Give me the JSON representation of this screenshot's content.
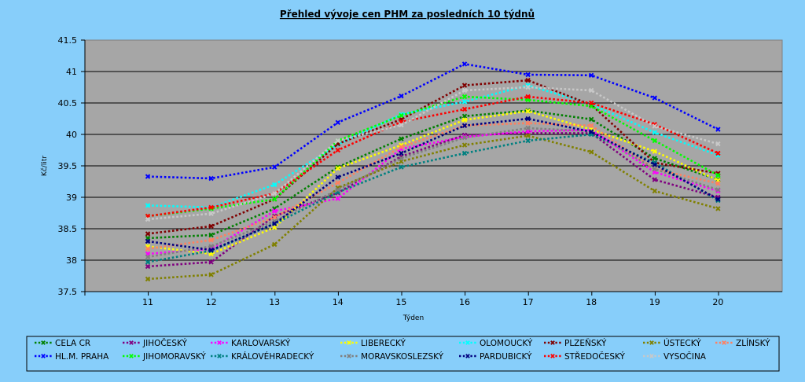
{
  "chart_data": {
    "type": "line",
    "title": "Přehled vývoje cen PHM za posledních 10 týdnů",
    "xlabel": "Týden",
    "ylabel": "Kč/litr",
    "x": [
      11,
      12,
      13,
      14,
      15,
      16,
      17,
      18,
      19,
      20
    ],
    "ylim": [
      37.5,
      41.5
    ],
    "yticks": [
      37.5,
      38,
      38.5,
      39,
      39.5,
      40,
      40.5,
      41,
      41.5
    ],
    "ytick_labels": [
      "37.5",
      "38",
      "38.5",
      "39",
      "39.5",
      "40",
      "40.5",
      "41",
      "41.5"
    ],
    "grid": true,
    "legend_position": "bottom",
    "series": [
      {
        "name": "CELA CR",
        "color": "#008000",
        "values": [
          38.35,
          38.4,
          38.82,
          39.48,
          39.93,
          40.29,
          40.38,
          40.24,
          39.62,
          39.28
        ]
      },
      {
        "name": "JIHOČESKÝ",
        "color": "#800080",
        "values": [
          37.9,
          37.97,
          38.7,
          39.07,
          39.65,
          39.99,
          40.02,
          40.02,
          39.28,
          39.0
        ]
      },
      {
        "name": "KARLOVARSKÝ",
        "color": "#ff00ff",
        "values": [
          38.1,
          38.18,
          38.78,
          38.98,
          39.77,
          39.96,
          40.05,
          40.07,
          39.4,
          39.1
        ]
      },
      {
        "name": "LIBERECKÝ",
        "color": "#ffff00",
        "values": [
          38.22,
          38.1,
          38.52,
          39.46,
          39.83,
          40.23,
          40.37,
          40.08,
          39.73,
          39.27
        ]
      },
      {
        "name": "OLOMOUCKÝ",
        "color": "#00ffff",
        "values": [
          38.87,
          38.84,
          39.2,
          39.84,
          40.32,
          40.52,
          40.78,
          40.48,
          40.03,
          39.67
        ]
      },
      {
        "name": "PLZEŇSKÝ",
        "color": "#800000",
        "values": [
          38.42,
          38.54,
          38.97,
          39.85,
          40.24,
          40.78,
          40.86,
          40.47,
          39.55,
          39.38
        ]
      },
      {
        "name": "ÚSTECKÝ",
        "color": "#808000",
        "values": [
          37.7,
          37.77,
          38.25,
          39.15,
          39.57,
          39.83,
          39.98,
          39.72,
          39.1,
          38.82
        ]
      },
      {
        "name": "ZLÍNSKÝ",
        "color": "#ff8060",
        "values": [
          38.18,
          38.32,
          38.68,
          39.23,
          39.8,
          40.14,
          40.18,
          40.14,
          39.45,
          39.22
        ]
      },
      {
        "name": "HL.M. PRAHA",
        "color": "#0000ff",
        "values": [
          39.33,
          39.3,
          39.48,
          40.19,
          40.61,
          41.12,
          40.95,
          40.94,
          40.58,
          40.08
        ]
      },
      {
        "name": "JIHOMORAVSKÝ",
        "color": "#00ff00",
        "values": [
          38.7,
          38.82,
          38.97,
          39.9,
          40.3,
          40.6,
          40.55,
          40.45,
          39.9,
          39.35
        ]
      },
      {
        "name": "KRÁLOVÉHRADECKÝ",
        "color": "#008080",
        "values": [
          37.97,
          38.15,
          38.58,
          39.08,
          39.48,
          39.7,
          39.9,
          40.0,
          39.55,
          38.95
        ]
      },
      {
        "name": "MORAVSKOSLEZSKÝ",
        "color": "#808080",
        "values": [
          38.05,
          38.22,
          38.62,
          39.12,
          39.62,
          39.95,
          40.1,
          40.05,
          39.45,
          39.12
        ]
      },
      {
        "name": "PARDUBICKÝ",
        "color": "#000080",
        "values": [
          38.3,
          38.16,
          38.58,
          39.32,
          39.7,
          40.14,
          40.25,
          40.04,
          39.52,
          38.97
        ]
      },
      {
        "name": "STŘEDOČESKÝ",
        "color": "#ff0000",
        "values": [
          38.7,
          38.84,
          39.06,
          39.75,
          40.2,
          40.4,
          40.6,
          40.5,
          40.16,
          39.7
        ]
      },
      {
        "name": "VYSOČINA",
        "color": "#c8c8c8",
        "values": [
          38.65,
          38.74,
          39.06,
          39.9,
          40.15,
          40.7,
          40.75,
          40.7,
          40.13,
          39.85
        ]
      }
    ]
  }
}
